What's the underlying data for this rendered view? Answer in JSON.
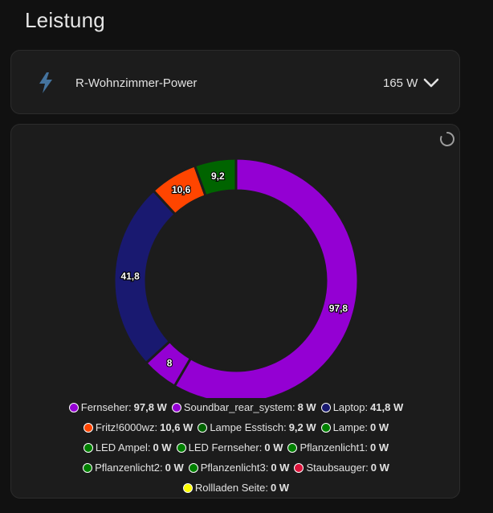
{
  "page": {
    "title": "Leistung"
  },
  "entity": {
    "name": "R-Wohnzimmer-Power",
    "value": "165 W",
    "icon": "flash-icon",
    "icon_color": "#44739e"
  },
  "chart_data": {
    "type": "pie",
    "series": [
      {
        "name": "Fernseher",
        "value": 97.8,
        "value_label": "97,8 W",
        "data_label": "97,8",
        "color": "#9400d3"
      },
      {
        "name": "Soundbar_rear_system",
        "value": 8,
        "value_label": "8 W",
        "data_label": "8",
        "color": "#9400d3"
      },
      {
        "name": "Laptop",
        "value": 41.8,
        "value_label": "41,8 W",
        "data_label": "41,8",
        "color": "#191970"
      },
      {
        "name": "Fritz!6000wz",
        "value": 10.6,
        "value_label": "10,6 W",
        "data_label": "10,6",
        "color": "#ff4500"
      },
      {
        "name": "Lampe Esstisch",
        "value": 9.2,
        "value_label": "9,2 W",
        "data_label": "9,2",
        "color": "#006400"
      },
      {
        "name": "Lampe",
        "value": 0,
        "value_label": "0 W",
        "color": "#008000"
      },
      {
        "name": "LED Ampel",
        "value": 0,
        "value_label": "0 W",
        "color": "#008000"
      },
      {
        "name": "LED Fernseher",
        "value": 0,
        "value_label": "0 W",
        "color": "#008000"
      },
      {
        "name": "Pflanzenlicht1",
        "value": 0,
        "value_label": "0 W",
        "color": "#008000"
      },
      {
        "name": "Pflanzenlicht2",
        "value": 0,
        "value_label": "0 W",
        "color": "#008000"
      },
      {
        "name": "Pflanzenlicht3",
        "value": 0,
        "value_label": "0 W",
        "color": "#008000"
      },
      {
        "name": "Staubsauger",
        "value": 0,
        "value_label": "0 W",
        "color": "#dc143c"
      },
      {
        "name": "Rollladen Seite",
        "value": 0,
        "value_label": "0 W",
        "color": "#ffff00"
      }
    ],
    "legend_position": "bottom"
  }
}
